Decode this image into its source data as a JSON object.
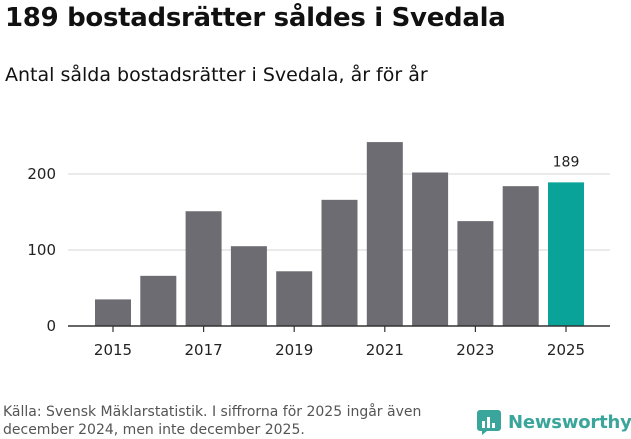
{
  "header": {
    "title": "189 bostadsrätter såldes i Svedala",
    "subtitle": "Antal sålda bostadsrätter i Svedala, år för år"
  },
  "chart_data": {
    "type": "bar",
    "title": "189 bostadsrätter såldes i Svedala",
    "subtitle": "Antal sålda bostadsrätter i Svedala, år för år",
    "xlabel": "",
    "ylabel": "",
    "categories": [
      "2015",
      "2016",
      "2017",
      "2018",
      "2019",
      "2020",
      "2021",
      "2022",
      "2023",
      "2024",
      "2025"
    ],
    "values": [
      35,
      66,
      151,
      105,
      72,
      166,
      242,
      202,
      138,
      184,
      189
    ],
    "x_tick_labels": [
      "2015",
      "2017",
      "2019",
      "2021",
      "2023",
      "2025"
    ],
    "y_ticks": [
      0,
      100,
      200
    ],
    "ylim": [
      0,
      250
    ],
    "grid": true,
    "highlight_index": 10,
    "highlight_label": "189",
    "colors": {
      "bar": "#6d6c72",
      "highlight": "#0aa39a",
      "grid": "#d6d6d6",
      "axis": "#333333"
    }
  },
  "footer": {
    "source": "Källa: Svensk Mäklarstatistik. I siffrorna för 2025 ingår även december 2024, men inte december 2025.",
    "brand": "Newsworthy",
    "brand_color": "#3aa59a",
    "brand_icon": "newsworthy-logo-icon"
  }
}
